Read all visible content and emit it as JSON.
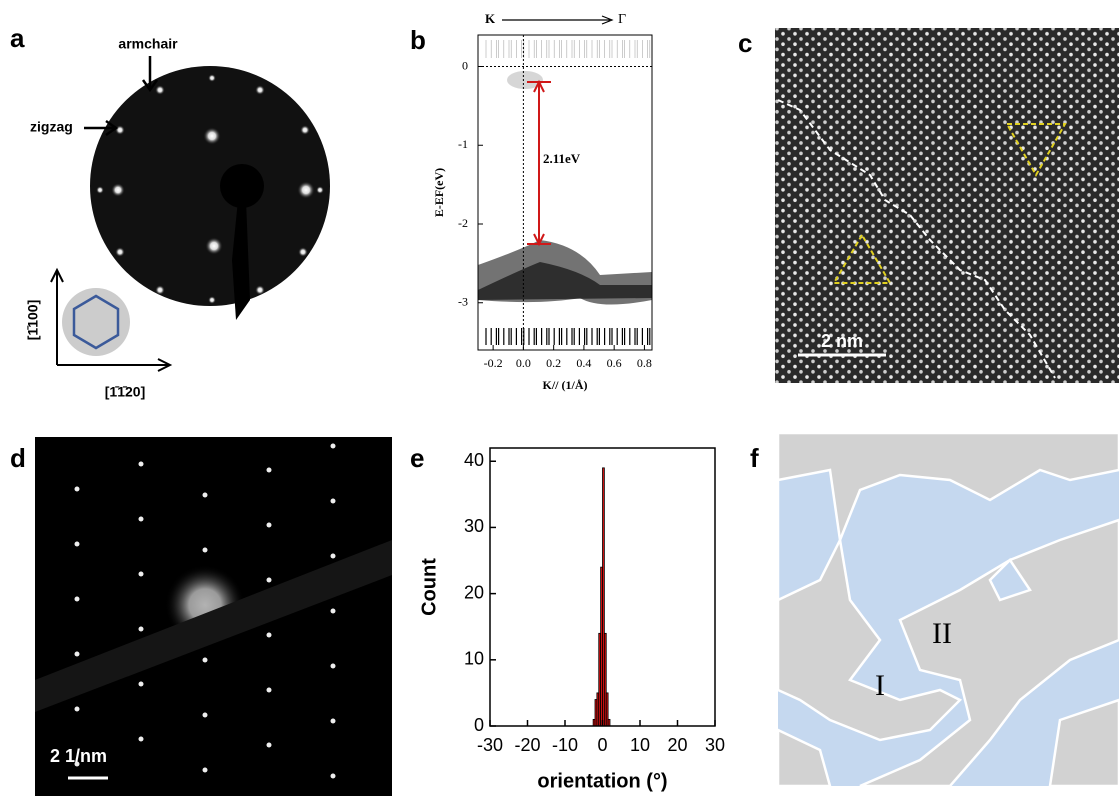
{
  "panels": {
    "a": {
      "label": "a",
      "armchair": "armchair",
      "zigzag": "zigzag",
      "axis_vertical": "[1̄100]",
      "axis_horizontal": "[1̄1̄20]"
    },
    "b": {
      "label": "b"
    },
    "c": {
      "label": "c",
      "scale_bar": "2 nm"
    },
    "d": {
      "label": "d",
      "scale_bar": "2 1/nm"
    },
    "e": {
      "label": "e"
    },
    "f": {
      "label": "f",
      "region_1": "I",
      "region_2": "II"
    }
  },
  "chart_data": [
    {
      "type": "band",
      "xlabel": "K// (1/Å)",
      "ylabel": "E-EF(eV)",
      "top_left": "K",
      "top_right": "Γ",
      "annotation": "2.11eV",
      "xlim": [
        -0.3,
        0.85
      ],
      "xticks": [
        -0.2,
        {
          "value": 0,
          "label": "0.0"
        },
        0.2,
        0.4,
        0.6,
        0.8
      ],
      "ylim": [
        -3.6,
        0.4
      ],
      "yticks": [
        0,
        -1,
        -2,
        -3
      ]
    },
    {
      "type": "histogram",
      "xlabel": "orientation (°)",
      "ylabel": "Count",
      "color": "#d01010",
      "bins": [
        -2.5,
        -2,
        -1.5,
        -1,
        -0.5,
        0,
        0.5,
        1,
        1.5,
        2
      ],
      "values": [
        1,
        4,
        5,
        14,
        24,
        39,
        14,
        5,
        1
      ],
      "xlim": [
        -30,
        30
      ],
      "xticks": [
        -30,
        -20,
        -10,
        0,
        10,
        20,
        30
      ],
      "ylim": [
        0,
        42
      ],
      "yticks": [
        0,
        10,
        20,
        30,
        40
      ]
    }
  ]
}
